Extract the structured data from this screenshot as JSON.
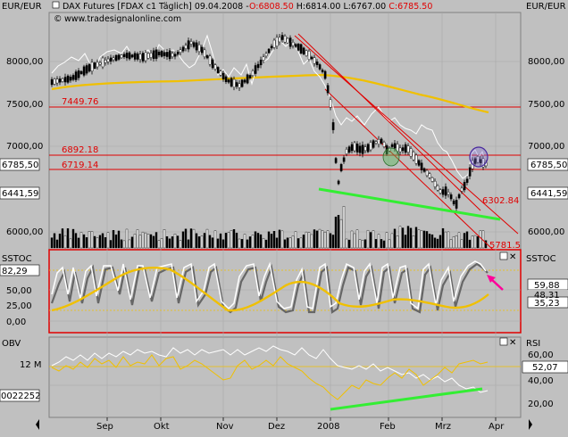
{
  "header": {
    "left_unit": "EUR/EUR",
    "right_unit": "EUR/EUR",
    "instrument": "DAX Futures [FDAX c1  Täglich] 09.04.2008 -",
    "open_label": "O:6808.50",
    "high_label": "H:6814.00",
    "low_label": "L:6767.00",
    "close_label": "C:6785.50",
    "website": "www.tradesignalonline.com"
  },
  "price_panel": {
    "left_ticks": [
      "8000,00",
      "7500,00",
      "7000,00",
      "6000,00"
    ],
    "right_ticks": [
      "8000,00",
      "7500,00",
      "7000,00",
      "6000,00"
    ],
    "left_badges": [
      "6785,50",
      "6441,59"
    ],
    "right_badges": [
      "6785,50",
      "6441,59"
    ],
    "level_labels": [
      "7449.76",
      "6892.18",
      "6719.14",
      "6302.84",
      "5781.5"
    ]
  },
  "sstoc_panel": {
    "label_left": "SSTOC",
    "label_right": "SSTOC",
    "left_ticks": [
      "82,29",
      "50,00",
      "25,00",
      "0,00"
    ],
    "right_values": [
      "59,88",
      "48,31",
      "35,23"
    ]
  },
  "obv_panel": {
    "label_left": "OBV",
    "label_right": "RSI",
    "left_ticks": [
      "12 M",
      "0022252"
    ],
    "right_ticks": [
      "60,00",
      "40,00",
      "20,00"
    ],
    "right_badge": "52,07"
  },
  "x_axis": {
    "year_label": "2008",
    "months": [
      "Sep",
      "Okt",
      "Nov",
      "Dez",
      "Feb",
      "Mrz",
      "Apr"
    ]
  },
  "colors": {
    "panel_bg": "#c0c0c0",
    "resistance_red": "#e00000",
    "moving_average_yellow": "#f0c000",
    "trendline_green": "#33ee33",
    "arrow_magenta": "#ff0099"
  }
}
